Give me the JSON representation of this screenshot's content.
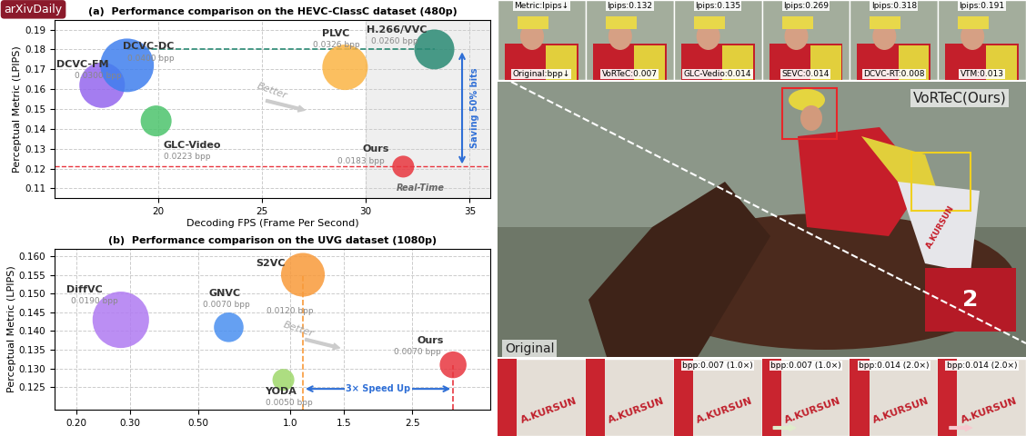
{
  "watermark": "arXivDaily",
  "chart_data": [
    {
      "type": "scatter",
      "title": "(a)  Performance comparison on the HEVC-ClassC dataset (480p)",
      "xlabel": "Decoding FPS (Frame Per Second)",
      "ylabel": "Perceptual Metric (LPIPS)",
      "xlim": [
        15,
        36
      ],
      "xticks": [
        20,
        25,
        30,
        35
      ],
      "ylim": [
        0.105,
        0.195
      ],
      "yticks": [
        0.11,
        0.12,
        0.13,
        0.14,
        0.15,
        0.16,
        0.17,
        0.18,
        0.19
      ],
      "grid": true,
      "real_time_fps": 30,
      "annotations": [
        "Better",
        "Saving 50% bits",
        "Real-Time"
      ],
      "series": [
        {
          "name": "DCVC-FM",
          "color": "#9466ee",
          "x": [
            17.3
          ],
          "y": [
            0.162
          ],
          "size": [
            1300
          ],
          "bpp_labels": [
            "0.0300 bpp"
          ]
        },
        {
          "name": "DCVC-DC",
          "color": "#3f7fee",
          "x": [
            18.5
          ],
          "y": [
            0.172
          ],
          "size": [
            1800
          ],
          "bpp_labels": [
            "0.0400 bpp"
          ]
        },
        {
          "name": "GLC-Video",
          "color": "#4cc46c",
          "x": [
            19.9
          ],
          "y": [
            0.144
          ],
          "size": [
            600
          ],
          "bpp_labels": [
            "0.0223 bpp"
          ]
        },
        {
          "name": "PLVC",
          "color": "#fbb444",
          "x": [
            29.0
          ],
          "y": [
            0.171
          ],
          "size": [
            1300
          ],
          "bpp_labels": [
            "0.0326 bpp"
          ]
        },
        {
          "name": "H.266/VVC",
          "color": "#2a8a74",
          "x": [
            33.3
          ],
          "y": [
            0.18
          ],
          "size": [
            1000
          ],
          "bpp_labels": [
            "0.0260 bpp"
          ]
        },
        {
          "name": "Ours",
          "color": "#e8363f",
          "x": [
            31.8
          ],
          "y": [
            0.121
          ],
          "size": [
            300
          ],
          "bpp_labels": [
            "0.0183 bpp"
          ]
        }
      ]
    },
    {
      "type": "scatter",
      "title": "(b)  Performance comparison on the UVG dataset (1080p)",
      "ylabel": "Perceptual Metric (LPIPS)",
      "log": "x",
      "xlim": [
        0.17,
        4.5
      ],
      "xticks": [
        {
          "value": 0.2,
          "label": "0.20"
        },
        {
          "value": 0.3,
          "label": "0.30"
        },
        {
          "value": 0.5,
          "label": "0.50"
        },
        {
          "value": 1.0,
          "label": "1.0"
        },
        {
          "value": 1.5,
          "label": "1.5"
        },
        {
          "value": 2.5,
          "label": "2.5"
        }
      ],
      "ylim": [
        0.119,
        0.162
      ],
      "yticks": [
        {
          "value": 0.125,
          "label": "0.125"
        },
        {
          "value": 0.13,
          "label": "0.130"
        },
        {
          "value": 0.135,
          "label": "0.135"
        },
        {
          "value": 0.14,
          "label": "0.140"
        },
        {
          "value": 0.145,
          "label": "0.145"
        },
        {
          "value": 0.15,
          "label": "0.150"
        },
        {
          "value": 0.155,
          "label": "0.155"
        },
        {
          "value": 0.16,
          "label": "0.160"
        }
      ],
      "grid": true,
      "annotations": [
        "Better",
        "3× Speed Up"
      ],
      "series": [
        {
          "name": "DiffVC",
          "color": "#b07af2",
          "x": [
            0.28
          ],
          "y": [
            0.143
          ],
          "size": [
            2000
          ],
          "bpp_labels": [
            "0.0190 bpp"
          ]
        },
        {
          "name": "GNVC",
          "color": "#4a8ff0",
          "x": [
            0.63
          ],
          "y": [
            0.141
          ],
          "size": [
            550
          ],
          "bpp_labels": [
            "0.0070 bpp"
          ]
        },
        {
          "name": "S2VC",
          "color": "#f89a3a",
          "x": [
            1.1
          ],
          "y": [
            0.155
          ],
          "size": [
            1200
          ],
          "bpp_labels": [
            "0.0120 bpp"
          ]
        },
        {
          "name": "YODA",
          "color": "#9fd86b",
          "x": [
            0.95
          ],
          "y": [
            0.127
          ],
          "size": [
            300
          ],
          "bpp_labels": [
            "0.0050 bpp"
          ]
        },
        {
          "name": "Ours",
          "color": "#e8363f",
          "x": [
            3.4
          ],
          "y": [
            0.131
          ],
          "size": [
            450
          ],
          "bpp_labels": [
            "0.0070 bpp"
          ]
        }
      ]
    }
  ],
  "image_panel": {
    "top_strip": {
      "metric_labels": [
        "Metric:lpips↓",
        "lpips:0.132",
        "lpips:0.135",
        "lpips:0.269",
        "lpips:0.318",
        "lpips:0.191"
      ],
      "bpp_labels": [
        "Original:bpp↓",
        "VoRTeC:0.007",
        "GLC-Vedio:0.014",
        "SEVC:0.014",
        "DCVC-RT:0.008",
        "VTM:0.013"
      ]
    },
    "main_image": {
      "method_label": "VoRTeC(Ours)",
      "original_label": "Original",
      "jersey_text": "A.KURSUN",
      "saddle_number": "2"
    },
    "bottom_strip": {
      "labels": [
        null,
        null,
        "bpp:0.007 (1.0×)",
        "bpp:0.007 (1.0×)",
        "bpp:0.014 (2.0×)",
        "bpp:0.014 (2.0×)"
      ]
    }
  }
}
